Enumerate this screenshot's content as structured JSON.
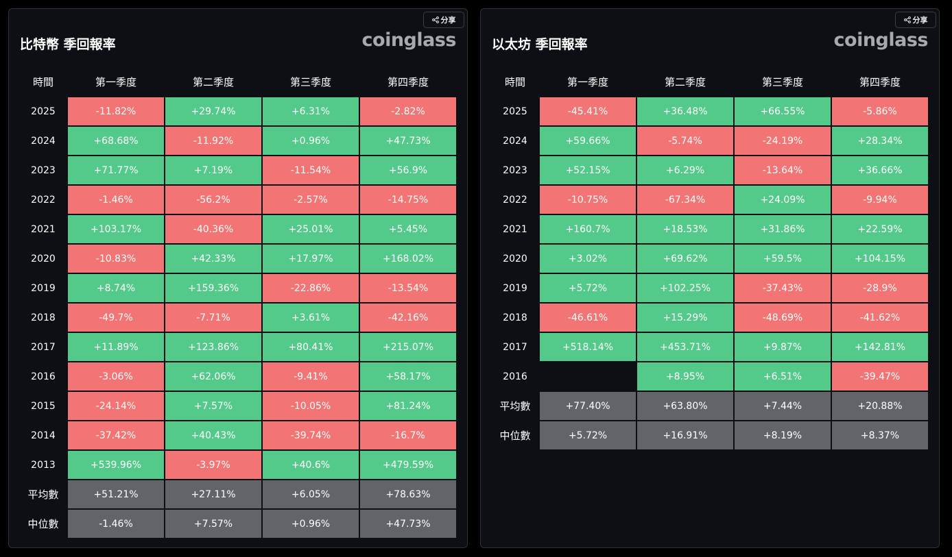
{
  "share_label": "分享",
  "brand": "coinglass",
  "colors": {
    "positive": "#53c98a",
    "negative": "#f27474",
    "summary": "#616468",
    "panel_bg": "#0d0f14"
  },
  "header": [
    "時間",
    "第一季度",
    "第二季度",
    "第三季度",
    "第四季度"
  ],
  "chart_data": [
    {
      "type": "table",
      "title": "比特幣 季回報率",
      "columns": [
        "時間",
        "第一季度",
        "第二季度",
        "第三季度",
        "第四季度"
      ],
      "rows": [
        {
          "label": "2025",
          "values": [
            "-11.82%",
            "+29.74%",
            "+6.31%",
            "-2.82%"
          ]
        },
        {
          "label": "2024",
          "values": [
            "+68.68%",
            "-11.92%",
            "+0.96%",
            "+47.73%"
          ]
        },
        {
          "label": "2023",
          "values": [
            "+71.77%",
            "+7.19%",
            "-11.54%",
            "+56.9%"
          ]
        },
        {
          "label": "2022",
          "values": [
            "-1.46%",
            "-56.2%",
            "-2.57%",
            "-14.75%"
          ]
        },
        {
          "label": "2021",
          "values": [
            "+103.17%",
            "-40.36%",
            "+25.01%",
            "+5.45%"
          ]
        },
        {
          "label": "2020",
          "values": [
            "-10.83%",
            "+42.33%",
            "+17.97%",
            "+168.02%"
          ]
        },
        {
          "label": "2019",
          "values": [
            "+8.74%",
            "+159.36%",
            "-22.86%",
            "-13.54%"
          ]
        },
        {
          "label": "2018",
          "values": [
            "-49.7%",
            "-7.71%",
            "+3.61%",
            "-42.16%"
          ]
        },
        {
          "label": "2017",
          "values": [
            "+11.89%",
            "+123.86%",
            "+80.41%",
            "+215.07%"
          ]
        },
        {
          "label": "2016",
          "values": [
            "-3.06%",
            "+62.06%",
            "-9.41%",
            "+58.17%"
          ]
        },
        {
          "label": "2015",
          "values": [
            "-24.14%",
            "+7.57%",
            "-10.05%",
            "+81.24%"
          ]
        },
        {
          "label": "2014",
          "values": [
            "-37.42%",
            "+40.43%",
            "-39.74%",
            "-16.7%"
          ]
        },
        {
          "label": "2013",
          "values": [
            "+539.96%",
            "-3.97%",
            "+40.6%",
            "+479.59%"
          ]
        }
      ],
      "summary": [
        {
          "label": "平均數",
          "values": [
            "+51.21%",
            "+27.11%",
            "+6.05%",
            "+78.63%"
          ]
        },
        {
          "label": "中位數",
          "values": [
            "-1.46%",
            "+7.57%",
            "+0.96%",
            "+47.73%"
          ]
        }
      ]
    },
    {
      "type": "table",
      "title": "以太坊 季回報率",
      "columns": [
        "時間",
        "第一季度",
        "第二季度",
        "第三季度",
        "第四季度"
      ],
      "rows": [
        {
          "label": "2025",
          "values": [
            "-45.41%",
            "+36.48%",
            "+66.55%",
            "-5.86%"
          ]
        },
        {
          "label": "2024",
          "values": [
            "+59.66%",
            "-5.74%",
            "-24.19%",
            "+28.34%"
          ]
        },
        {
          "label": "2023",
          "values": [
            "+52.15%",
            "+6.29%",
            "-13.64%",
            "+36.66%"
          ]
        },
        {
          "label": "2022",
          "values": [
            "-10.75%",
            "-67.34%",
            "+24.09%",
            "-9.94%"
          ]
        },
        {
          "label": "2021",
          "values": [
            "+160.7%",
            "+18.53%",
            "+31.86%",
            "+22.59%"
          ]
        },
        {
          "label": "2020",
          "values": [
            "+3.02%",
            "+69.62%",
            "+59.5%",
            "+104.15%"
          ]
        },
        {
          "label": "2019",
          "values": [
            "+5.72%",
            "+102.25%",
            "-37.43%",
            "-28.9%"
          ]
        },
        {
          "label": "2018",
          "values": [
            "-46.61%",
            "+15.29%",
            "-48.69%",
            "-41.62%"
          ]
        },
        {
          "label": "2017",
          "values": [
            "+518.14%",
            "+453.71%",
            "+9.87%",
            "+142.81%"
          ]
        },
        {
          "label": "2016",
          "values": [
            "",
            "+8.95%",
            "+6.51%",
            "-39.47%"
          ]
        }
      ],
      "summary": [
        {
          "label": "平均數",
          "values": [
            "+77.40%",
            "+63.80%",
            "+7.44%",
            "+20.88%"
          ]
        },
        {
          "label": "中位數",
          "values": [
            "+5.72%",
            "+16.91%",
            "+8.19%",
            "+8.37%"
          ]
        }
      ]
    }
  ]
}
